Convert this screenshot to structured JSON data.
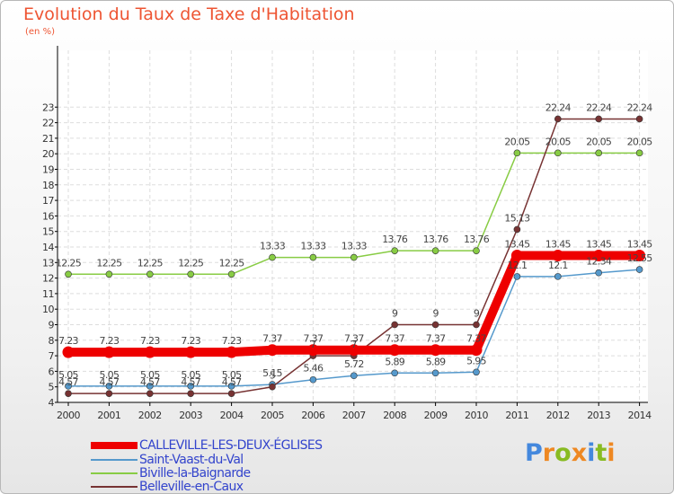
{
  "header": {
    "title": "Evolution du Taux de Taxe d'Habitation",
    "subtitle": "(en %)"
  },
  "chart_data": {
    "type": "line",
    "title": "Evolution du Taux de Taxe d'Habitation",
    "ylabel": "(en %)",
    "xlabel": "",
    "x": [
      "2000",
      "2001",
      "2002",
      "2003",
      "2004",
      "2005",
      "2006",
      "2007",
      "2008",
      "2009",
      "2010",
      "2011",
      "2012",
      "2013",
      "2014"
    ],
    "ylim": [
      4,
      23
    ],
    "yticks": [
      4,
      5,
      6,
      7,
      8,
      9,
      10,
      11,
      12,
      13,
      14,
      15,
      16,
      17,
      18,
      19,
      20,
      21,
      22,
      23
    ],
    "grid": true,
    "legend_position": "bottom-left",
    "series": [
      {
        "name": "CALLEVILLE-LES-DEUX-ÉGLISES",
        "color": "#ee0000",
        "values": [
          7.23,
          7.23,
          7.23,
          7.23,
          7.23,
          7.37,
          7.37,
          7.37,
          7.37,
          7.37,
          7.37,
          13.45,
          13.45,
          13.45,
          13.45
        ],
        "labels": [
          "7.23",
          "7.23",
          "7.23",
          "7.23",
          "7.23",
          "7.37",
          "7.37",
          "7.37",
          "7.37",
          "7.37",
          "7.37",
          "13.45",
          "13.45",
          "13.45",
          "13.45"
        ]
      },
      {
        "name": "Saint-Vaast-du-Val",
        "color": "#5599cc",
        "values": [
          5.05,
          5.05,
          5.05,
          5.05,
          5.05,
          5.15,
          5.46,
          5.72,
          5.89,
          5.89,
          5.95,
          12.1,
          12.1,
          12.34,
          12.55
        ],
        "labels": [
          "5.05",
          "5.05",
          "5.05",
          "5.05",
          "5.05",
          "5.15",
          "5.46",
          "5.72",
          "5.89",
          "5.89",
          "5.95",
          "12.1",
          "12.1",
          "12.34",
          "12.55"
        ]
      },
      {
        "name": "Biville-la-Baignarde",
        "color": "#88cc44",
        "values": [
          12.25,
          12.25,
          12.25,
          12.25,
          12.25,
          13.33,
          13.33,
          13.33,
          13.76,
          13.76,
          13.76,
          20.05,
          20.05,
          20.05,
          20.05
        ],
        "labels": [
          "12.25",
          "12.25",
          "12.25",
          "12.25",
          "12.25",
          "13.33",
          "13.33",
          "13.33",
          "13.76",
          "13.76",
          "13.76",
          "20.05",
          "20.05",
          "20.05",
          "20.05"
        ]
      },
      {
        "name": "Belleville-en-Caux",
        "color": "#773333",
        "values": [
          4.57,
          4.57,
          4.57,
          4.57,
          4.57,
          5,
          7,
          7,
          9,
          9,
          9,
          15.13,
          22.24,
          22.24,
          22.24
        ],
        "labels": [
          "4.57",
          "4.57",
          "4.57",
          "4.57",
          "4.57",
          "5",
          "7",
          "7",
          "9",
          "9",
          "9",
          "15.13",
          "22.24",
          "22.24",
          "22.24"
        ]
      }
    ]
  },
  "logo": {
    "letters": [
      "P",
      "r",
      "o",
      "x",
      "i",
      "t",
      "i"
    ],
    "colors": [
      "#4488dd",
      "#ee8822",
      "#88bb22",
      "#ee8822",
      "#4488dd",
      "#88bb22",
      "#ee8822"
    ]
  }
}
